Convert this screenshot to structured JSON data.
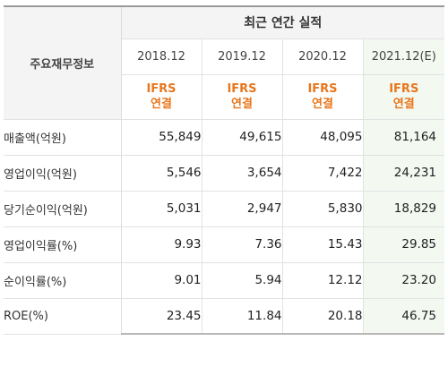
{
  "table": {
    "group_title": "최근 연간 실적",
    "label_header": "주요재무정보",
    "columns": [
      {
        "period": "2018.12",
        "standard": "IFRS",
        "basis": "연결",
        "estimate": false
      },
      {
        "period": "2019.12",
        "standard": "IFRS",
        "basis": "연결",
        "estimate": false
      },
      {
        "period": "2020.12",
        "standard": "IFRS",
        "basis": "연결",
        "estimate": false
      },
      {
        "period": "2021.12(E)",
        "standard": "IFRS",
        "basis": "연결",
        "estimate": true
      }
    ],
    "rows": [
      {
        "label": "매출액(억원)",
        "values": [
          "55,849",
          "49,615",
          "48,095",
          "81,164"
        ]
      },
      {
        "label": "영업이익(억원)",
        "values": [
          "5,546",
          "3,654",
          "7,422",
          "24,231"
        ]
      },
      {
        "label": "당기순이익(억원)",
        "values": [
          "5,031",
          "2,947",
          "5,830",
          "18,829"
        ]
      },
      {
        "label": "영업이익률(%)",
        "values": [
          "9.93",
          "7.36",
          "15.43",
          "29.85"
        ]
      },
      {
        "label": "순이익률(%)",
        "values": [
          "9.01",
          "5.94",
          "12.12",
          "23.20"
        ]
      },
      {
        "label": "ROE(%)",
        "values": [
          "23.45",
          "11.84",
          "20.18",
          "46.75"
        ]
      }
    ]
  },
  "colors": {
    "standard_text": "#e8761b",
    "estimate_column_bg": "#f3f8f1",
    "header_bg": "#f4f4f4"
  }
}
